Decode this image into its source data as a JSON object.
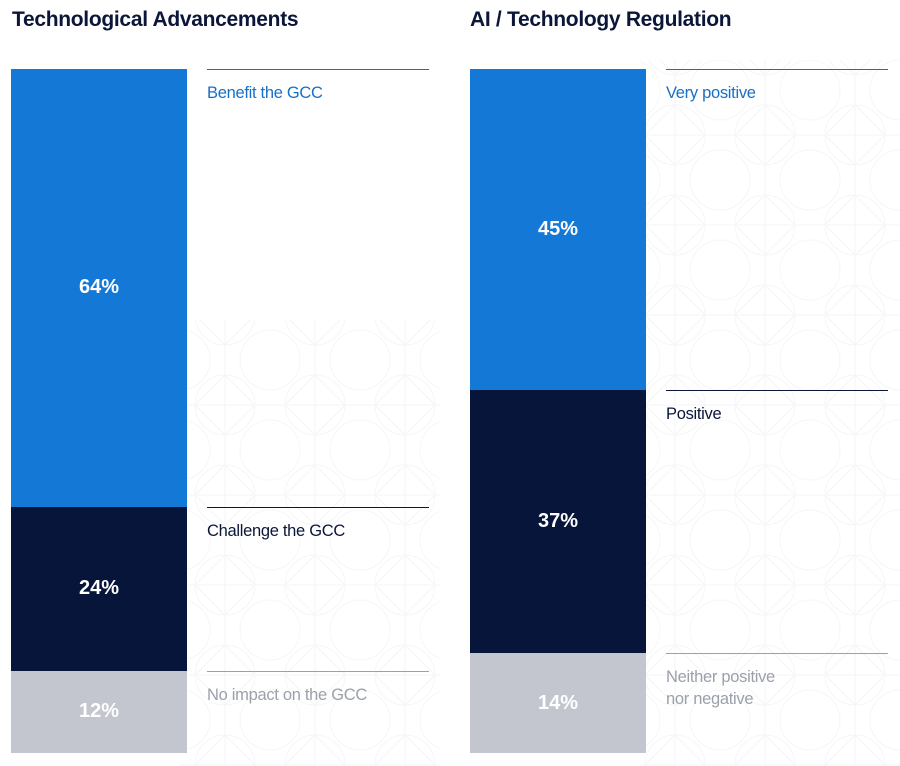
{
  "colors": {
    "blue": "#1479d6",
    "navy": "#07153a",
    "grey": "#c3c6ce",
    "blue_text": "#1670c8",
    "navy_text": "#0b1638",
    "grey_text": "#9ba0aa",
    "title": "#0b1638"
  },
  "chart_data": [
    {
      "type": "bar",
      "stacked": true,
      "title": "Technological Advancements",
      "unit": "%",
      "series": [
        {
          "name": "Benefit the GCC",
          "value": 64,
          "label": "64%",
          "color": "blue"
        },
        {
          "name": "Challenge the GCC",
          "value": 24,
          "label": "24%",
          "color": "navy"
        },
        {
          "name": "No impact on the GCC",
          "value": 12,
          "label": "12%",
          "color": "grey"
        }
      ]
    },
    {
      "type": "bar",
      "stacked": true,
      "title": "AI / Technology Regulation",
      "unit": "%",
      "series": [
        {
          "name": "Very positive",
          "value": 45,
          "label": "45%",
          "color": "blue"
        },
        {
          "name": "Positive",
          "value": 37,
          "label": "37%",
          "color": "navy"
        },
        {
          "name": "Neither positive nor negative",
          "value": 14,
          "label": "14%",
          "color": "grey"
        }
      ]
    }
  ]
}
